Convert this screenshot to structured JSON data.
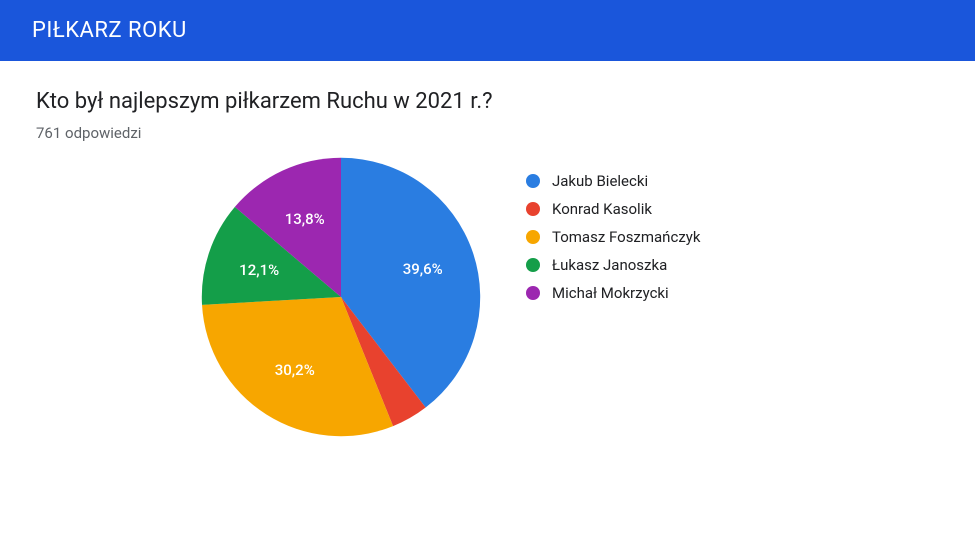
{
  "header": {
    "title": "PIŁKARZ ROKU",
    "background_color": "#1a56db",
    "text_color": "#ffffff"
  },
  "question": "Kto był najlepszym piłkarzem Ruchu w 2021 r.?",
  "responses_label": "761 odpowiedzi",
  "chart": {
    "type": "pie",
    "start_angle_deg": 0,
    "background_color": "#ffffff",
    "slice_label_color": "#ffffff",
    "slice_label_fontsize": 15,
    "slices": [
      {
        "name": "Jakub Bielecki",
        "value": 39.6,
        "label": "39,6%",
        "color": "#2a7de1",
        "show_label": true
      },
      {
        "name": "Konrad Kasolik",
        "value": 4.3,
        "label": "4,3%",
        "color": "#e8422e",
        "show_label": false
      },
      {
        "name": "Tomasz Foszmańczyk",
        "value": 30.2,
        "label": "30,2%",
        "color": "#f7a600",
        "show_label": true
      },
      {
        "name": "Łukasz Janoszka",
        "value": 12.1,
        "label": "12,1%",
        "color": "#149e49",
        "show_label": true
      },
      {
        "name": "Michał Mokrzycki",
        "value": 13.8,
        "label": "13,8%",
        "color": "#9c27b0",
        "show_label": true
      }
    ]
  },
  "legend_fontsize": 15,
  "legend_text_color": "#202124"
}
